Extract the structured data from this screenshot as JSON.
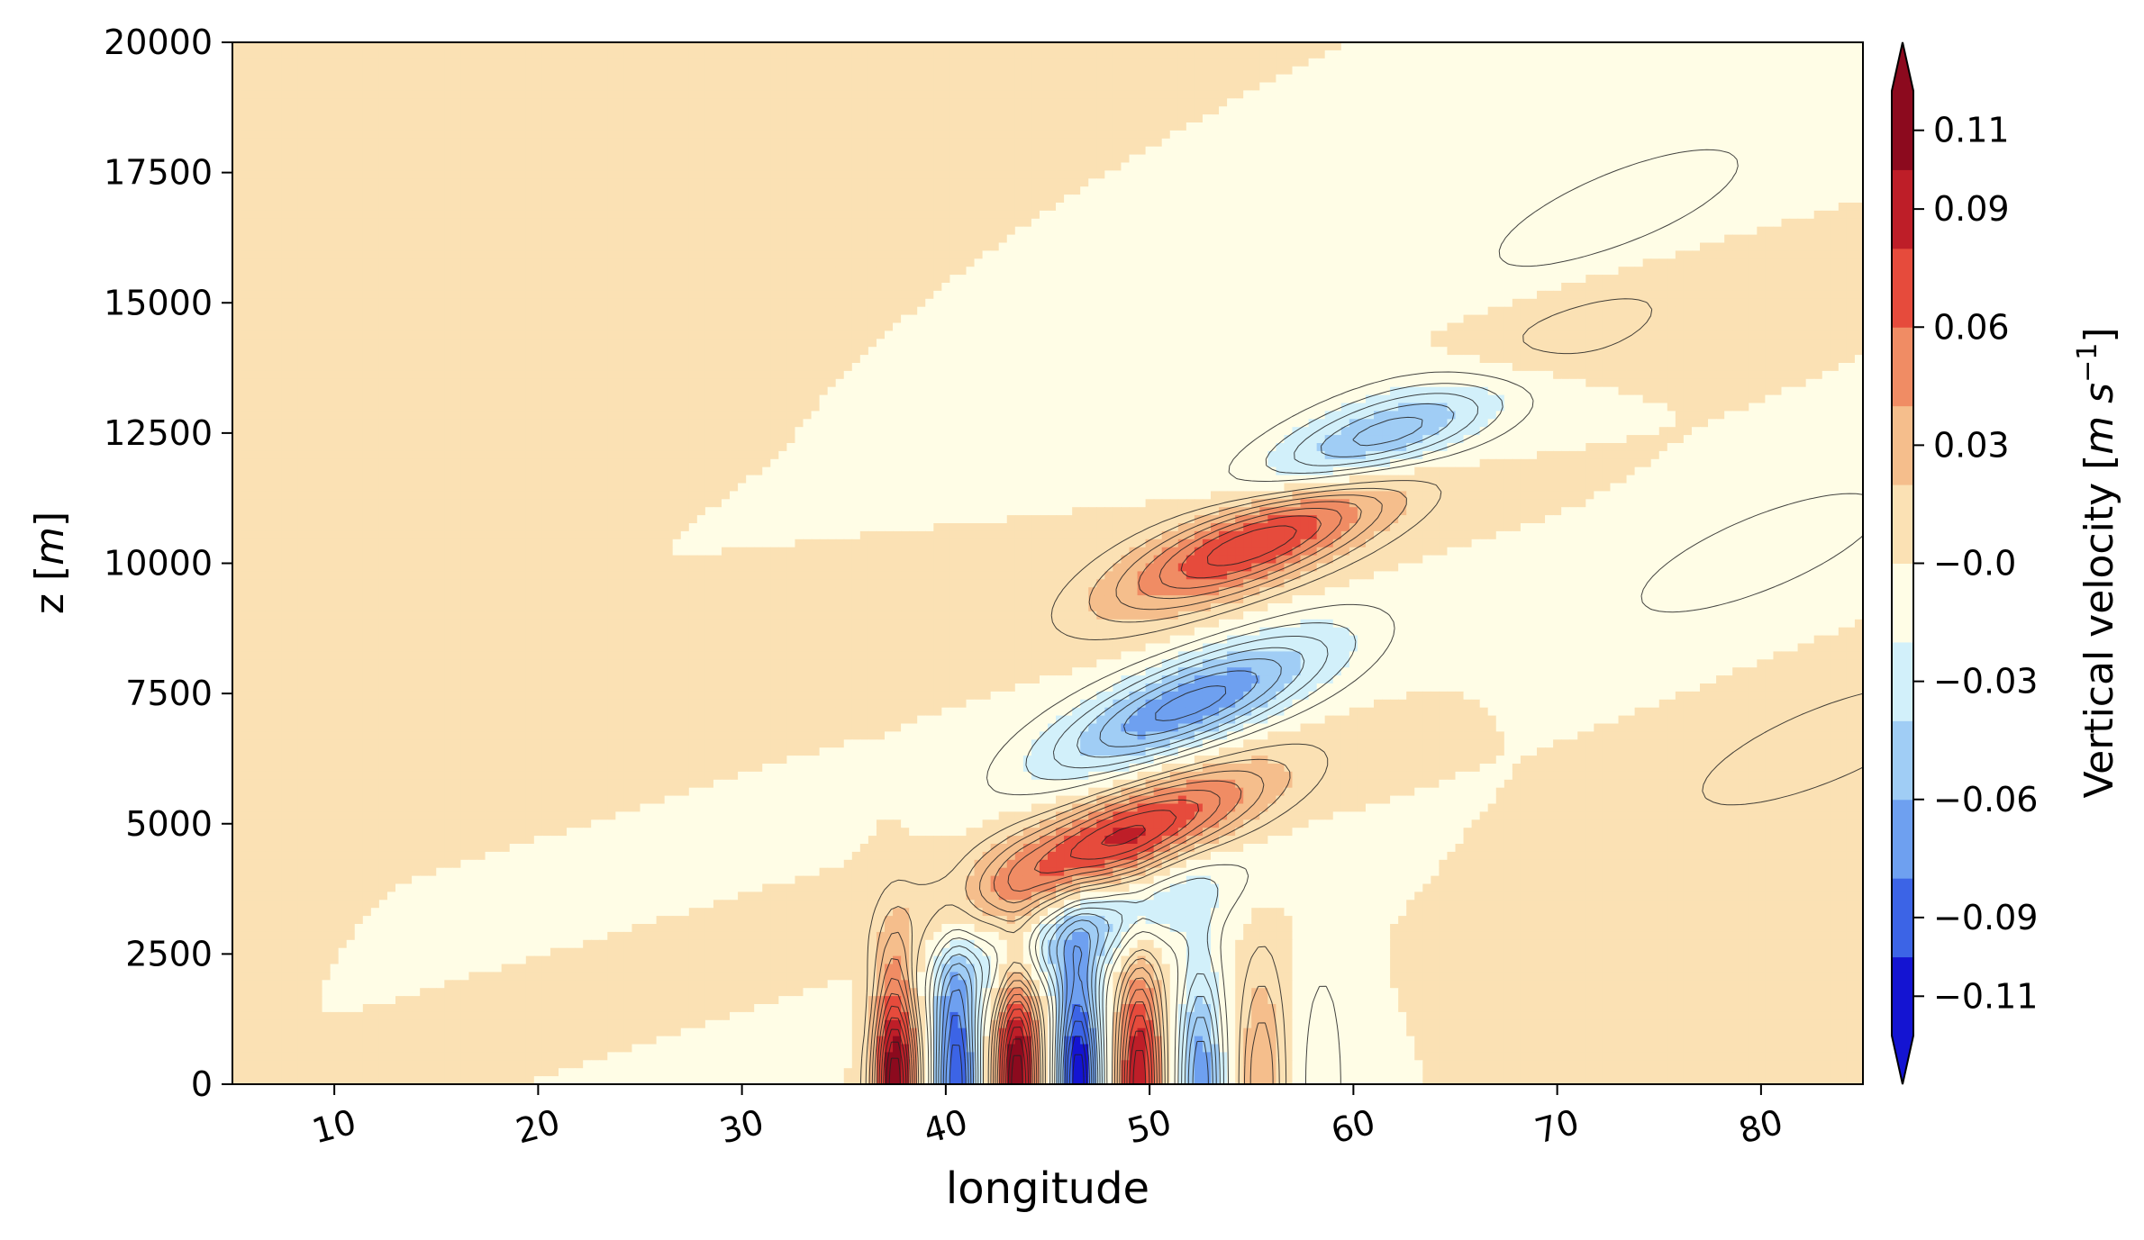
{
  "chart_data": {
    "type": "contourf",
    "title": "",
    "xlabel": "longitude",
    "ylabel_prefix": "z [",
    "ylabel_unit": "m",
    "ylabel_suffix": "]",
    "colorbar_label_prefix": "Vertical velocity [",
    "colorbar_label_unit_m": "m",
    "colorbar_label_unit_s": "s",
    "colorbar_label_exp": "−1",
    "colorbar_label_suffix": "]",
    "xlim": [
      5,
      85
    ],
    "ylim": [
      0,
      20000
    ],
    "x_ticks": [
      10,
      20,
      30,
      40,
      50,
      60,
      70,
      80
    ],
    "x_tick_labels": [
      "10",
      "20",
      "30",
      "40",
      "50",
      "60",
      "70",
      "80"
    ],
    "y_ticks": [
      0,
      2500,
      5000,
      7500,
      10000,
      12500,
      15000,
      17500,
      20000
    ],
    "y_tick_labels": [
      "0",
      "2500",
      "5000",
      "7500",
      "10000",
      "12500",
      "15000",
      "17500",
      "20000"
    ],
    "colorbar_range": [
      -0.12,
      0.12
    ],
    "colorbar_ticks": [
      0.11,
      0.09,
      0.06,
      0.03,
      0.0,
      -0.03,
      -0.06,
      -0.09,
      -0.11
    ],
    "colorbar_tick_labels": [
      "0.11",
      "0.09",
      "0.06",
      "0.03",
      "−0.0",
      "−0.03",
      "−0.06",
      "−0.09",
      "−0.11"
    ],
    "colormap": "RdYlBu_r",
    "colormap_colors": [
      "#1414d2",
      "#3c64e6",
      "#6ea0f0",
      "#a0cdf5",
      "#d2f0fa",
      "#fffde6",
      "#fbe1b4",
      "#f5be8c",
      "#f08c64",
      "#e64b3c",
      "#be1e28",
      "#8c0a1e"
    ],
    "levels_step": 0.01,
    "features": [
      {
        "kind": "lobe",
        "sign": "positive",
        "lon": 55.5,
        "z": 10500,
        "peak": 0.085
      },
      {
        "kind": "lobe",
        "sign": "negative",
        "lon": 62,
        "z": 12500,
        "peak": -0.075
      },
      {
        "kind": "lobe",
        "sign": "negative",
        "lon": 52,
        "z": 7300,
        "peak": -0.075
      },
      {
        "kind": "lobe",
        "sign": "positive",
        "lon": 48.5,
        "z": 4700,
        "peak": 0.085
      },
      {
        "kind": "lobe",
        "sign": "positive",
        "lon": 68,
        "z": 13800,
        "peak": 0.03
      },
      {
        "kind": "lobe",
        "sign": "negative",
        "lon": 47,
        "z": 3000,
        "peak": -0.045
      },
      {
        "kind": "lobe",
        "sign": "negative",
        "lon": 73,
        "z": 16800,
        "peak": -0.02
      },
      {
        "kind": "lobe",
        "sign": "negative",
        "lon": 80,
        "z": 10200,
        "peak": -0.02
      },
      {
        "kind": "lobe",
        "sign": "positive",
        "lon": 83,
        "z": 6500,
        "peak": 0.02
      },
      {
        "kind": "surface_cell",
        "lon": 37.5,
        "value": 0.12
      },
      {
        "kind": "surface_cell",
        "lon": 40.5,
        "value": -0.1
      },
      {
        "kind": "surface_cell",
        "lon": 43.5,
        "value": 0.12
      },
      {
        "kind": "surface_cell",
        "lon": 46.5,
        "value": -0.12
      },
      {
        "kind": "surface_cell",
        "lon": 49.5,
        "value": 0.1
      },
      {
        "kind": "surface_cell",
        "lon": 52.5,
        "value": -0.07
      },
      {
        "kind": "surface_cell",
        "lon": 55.5,
        "value": 0.04
      },
      {
        "kind": "surface_cell",
        "lon": 58.5,
        "value": -0.02
      }
    ]
  }
}
